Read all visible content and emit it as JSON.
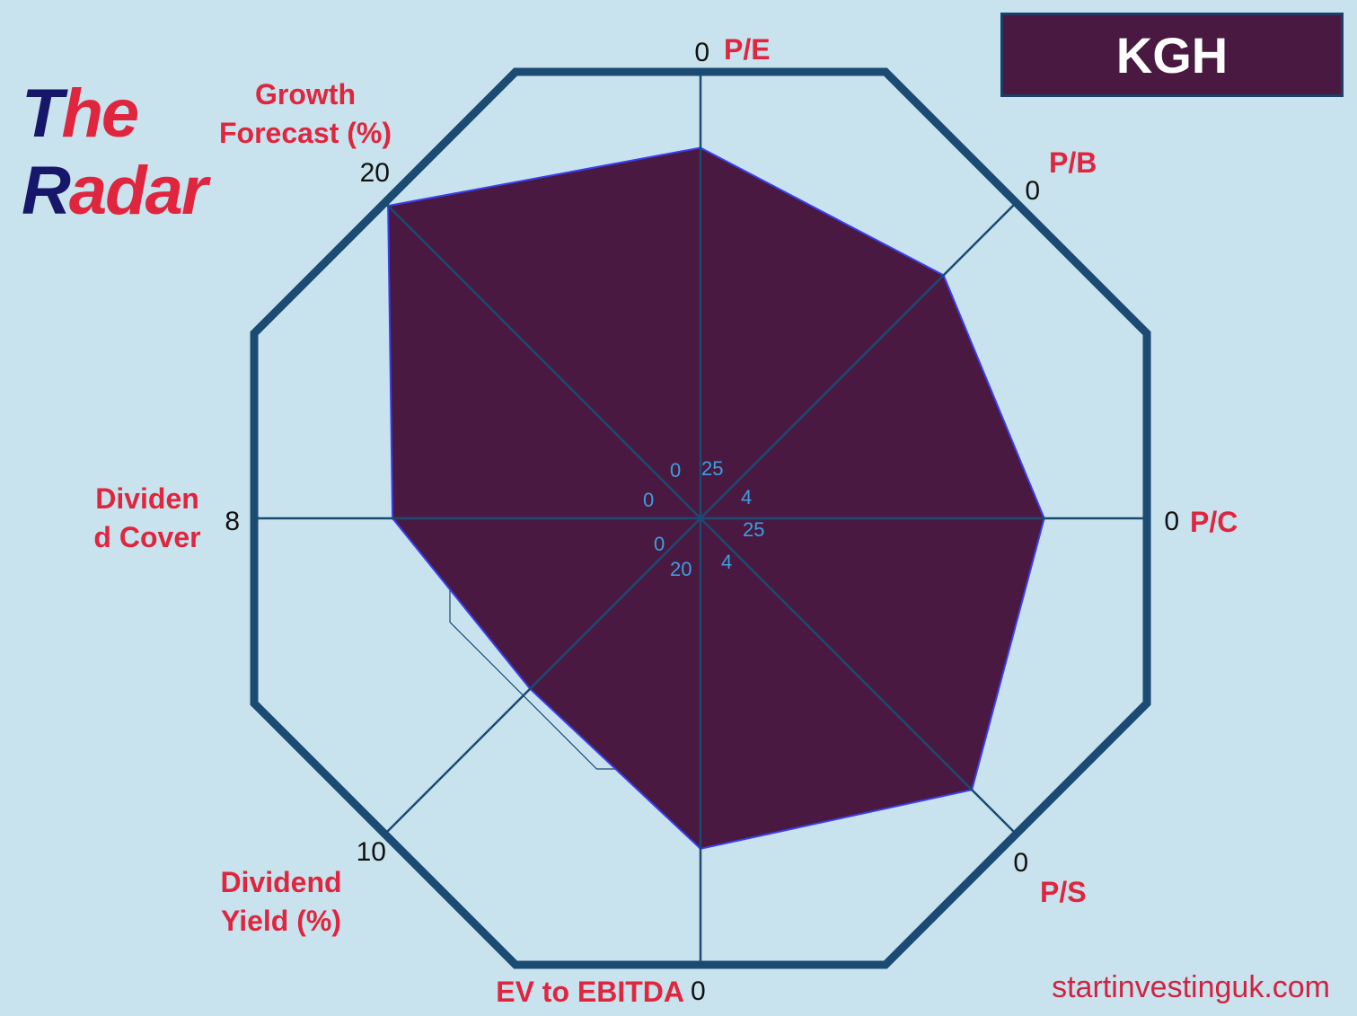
{
  "brand": {
    "part1_dark": "T",
    "part1_red": "he",
    "part2_dark": "R",
    "part2_red": "adar"
  },
  "ticker": "KGH",
  "website": "startinvestinguk.com",
  "colors": {
    "background": "#c8e3ed",
    "frame": "#1b4a72",
    "fill": "#4a1941",
    "fill_edge": "#3a3ff0",
    "label": "#e0253e",
    "inner_scale": "#3aa0e0",
    "ticker_box": "#4a1941"
  },
  "chart_data": {
    "type": "radar",
    "axes": [
      {
        "name": "P/E",
        "label_lines": [
          "P/E"
        ],
        "outer_value": "0",
        "center_value": "25",
        "value_fraction": 0.83
      },
      {
        "name": "P/B",
        "label_lines": [
          "P/B"
        ],
        "outer_value": "0",
        "center_value": "4",
        "value_fraction": 0.77
      },
      {
        "name": "P/C",
        "label_lines": [
          "P/C"
        ],
        "outer_value": "0",
        "center_value": "25",
        "value_fraction": 0.77
      },
      {
        "name": "P/S",
        "label_lines": [
          "P/S"
        ],
        "outer_value": "0",
        "center_value": "4",
        "value_fraction": 0.86
      },
      {
        "name": "EV to EBITDA",
        "label_lines": [
          "EV to EBITDA"
        ],
        "outer_value": "0",
        "center_value": "20",
        "value_fraction": 0.74
      },
      {
        "name": "Dividend Yield (%)",
        "label_lines": [
          "Dividend",
          "Yield (%)"
        ],
        "outer_value": "10",
        "center_value": "0",
        "value_fraction": 0.54
      },
      {
        "name": "Dividend Cover",
        "label_lines": [
          "Dividen",
          "d Cover"
        ],
        "outer_value": "8",
        "center_value": "0",
        "value_fraction": 0.69
      },
      {
        "name": "Growth Forecast (%)",
        "label_lines": [
          "Growth",
          "Forecast (%)"
        ],
        "outer_value": "20",
        "center_value": "0",
        "value_fraction": 0.99
      }
    ],
    "grid_levels": [
      0.5,
      0.8,
      1.0
    ]
  }
}
